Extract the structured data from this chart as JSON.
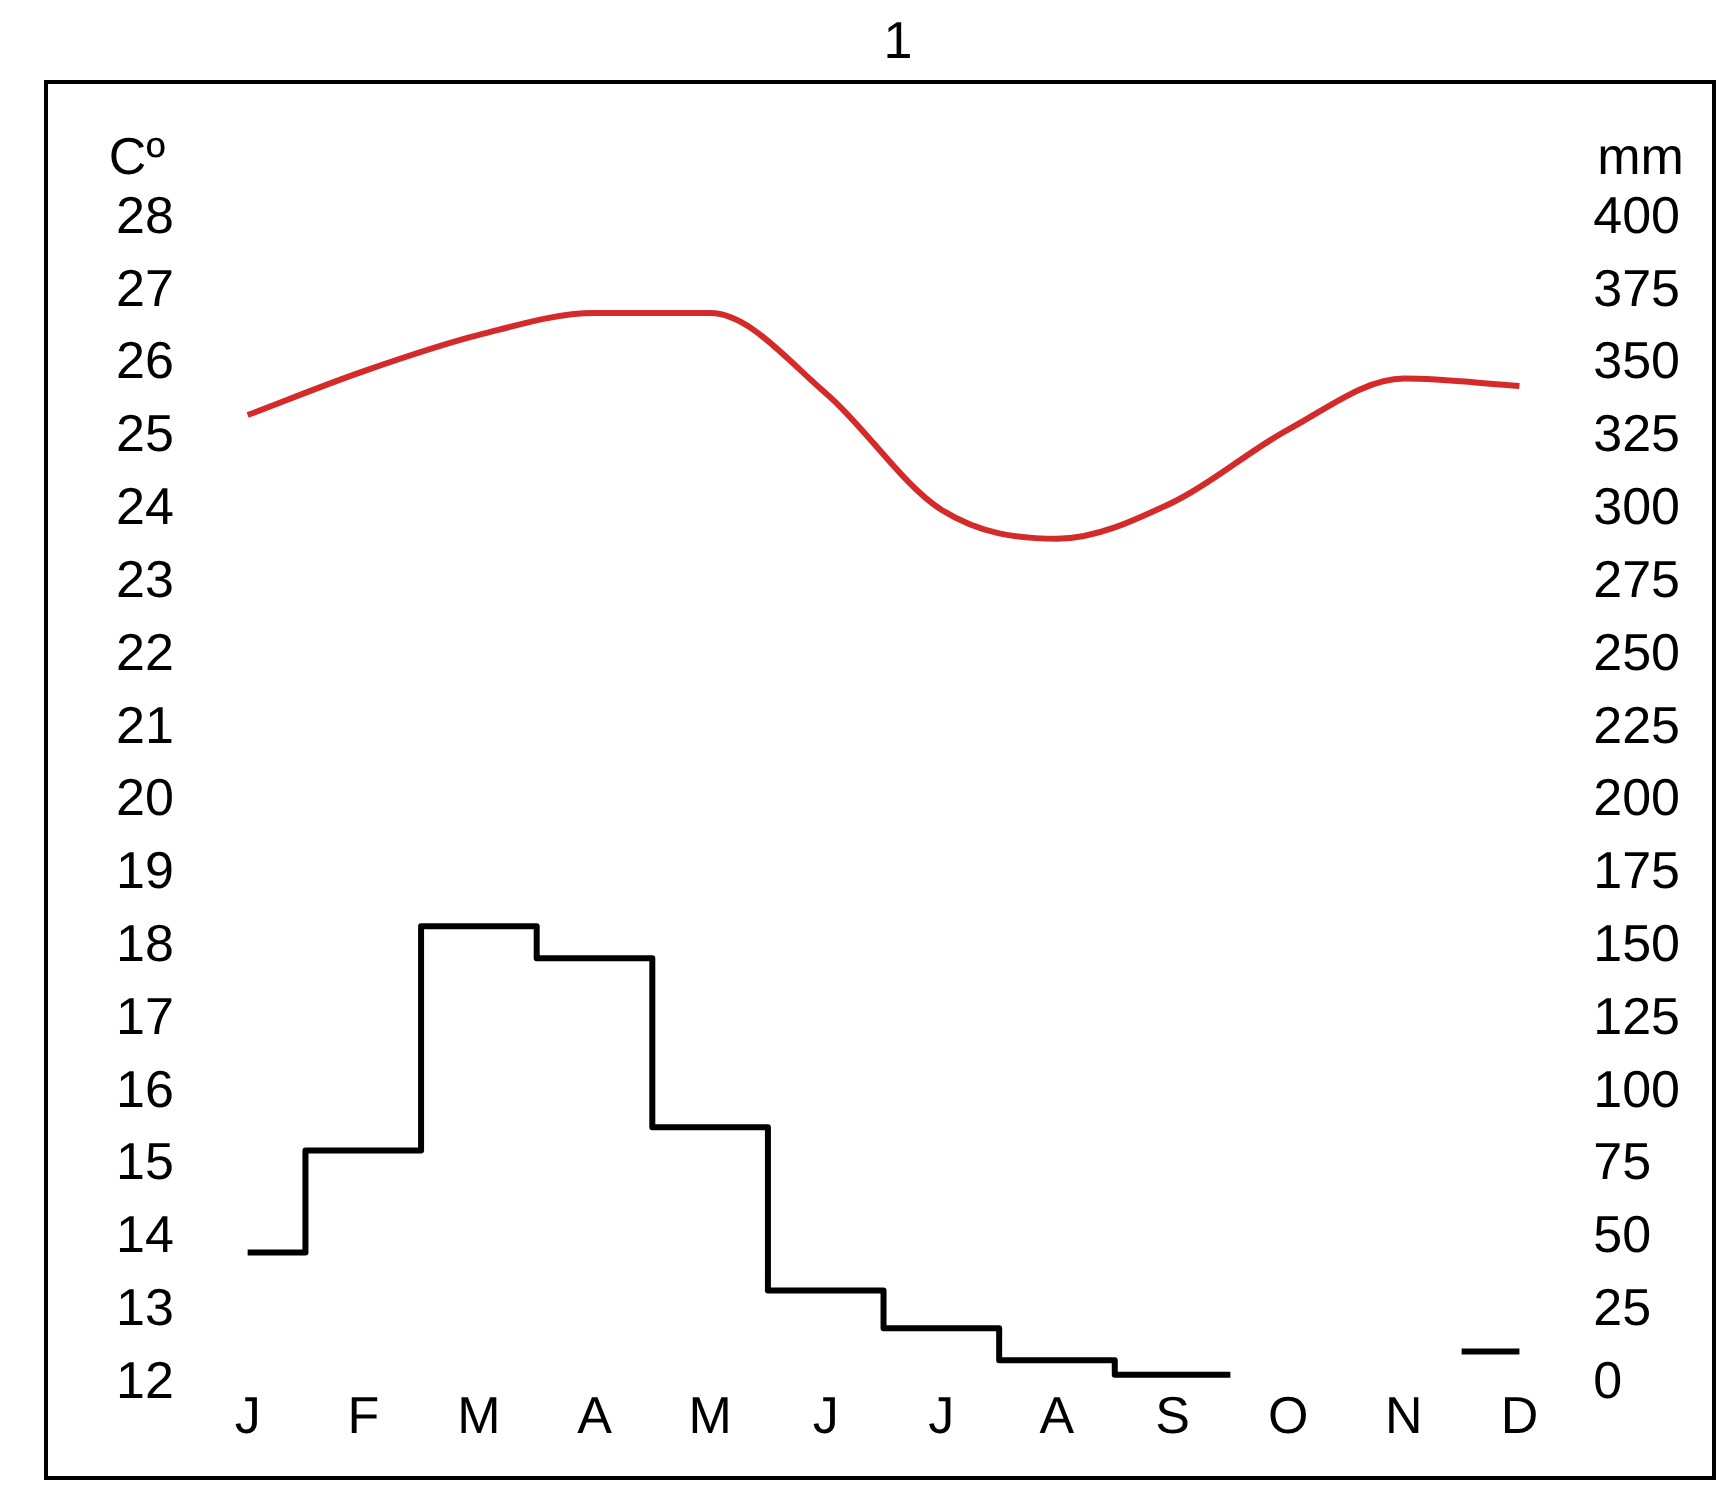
{
  "chart_data": {
    "type": "line",
    "title": "1",
    "ylabel": "Cº",
    "y2label": "mm",
    "categories": [
      "J",
      "F",
      "M",
      "A",
      "M",
      "J",
      "J",
      "A",
      "S",
      "O",
      "N",
      "D"
    ],
    "series": [
      {
        "type": "line",
        "color": "#d42a2a",
        "values": [
          25.3,
          25.9,
          26.4,
          26.7,
          26.7,
          25.6,
          24.0,
          23.6,
          24.1,
          25.1,
          25.8,
          25.7
        ]
      },
      {
        "type": "step",
        "axis": "y2",
        "color": "#000000",
        "values": [
          45,
          80,
          157,
          146,
          88,
          32,
          19,
          8,
          3,
          null,
          null,
          11
        ]
      }
    ],
    "ylim": [
      12,
      28
    ],
    "yticks": [
      12,
      13,
      14,
      15,
      16,
      17,
      18,
      19,
      20,
      21,
      22,
      23,
      24,
      25,
      26,
      27,
      28
    ],
    "y2lim": [
      0,
      400
    ],
    "y2ticks": [
      0,
      25,
      50,
      75,
      100,
      125,
      150,
      175,
      200,
      225,
      250,
      275,
      300,
      325,
      350,
      375,
      400
    ],
    "grid": false,
    "legend": false,
    "marker": "none"
  }
}
